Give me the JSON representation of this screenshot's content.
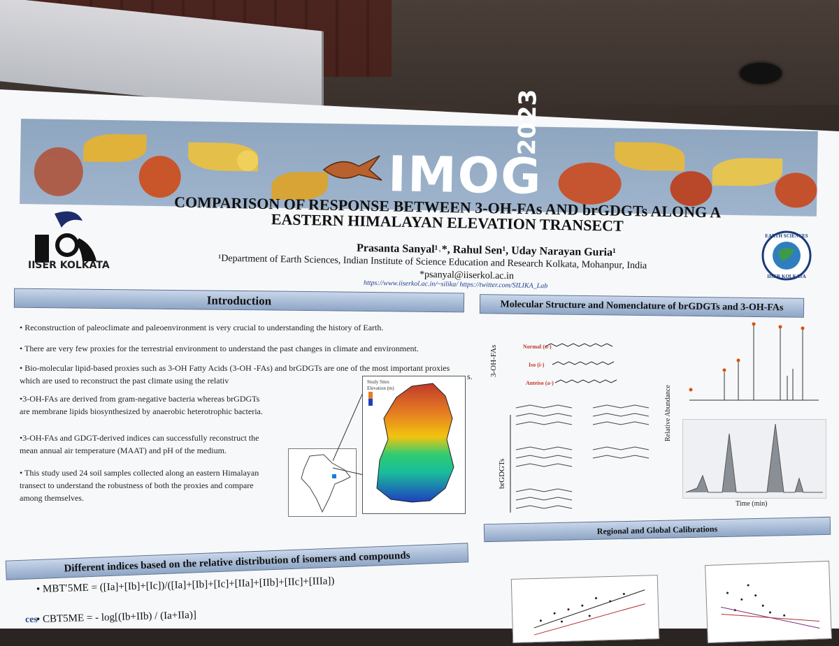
{
  "banner": {
    "event": "IMOG",
    "year": "2023"
  },
  "header": {
    "title_line1": "COMPARISON OF RESPONSE BETWEEN 3-OH-FAs AND brGDGTs ALONG A",
    "title_line2": "EASTERN HIMALAYAN ELEVATION TRANSECT",
    "authors": "Prasanta Sanyal¹˒*, Rahul Sen¹, Uday Narayan Guria¹",
    "affiliation": "¹Department of Earth Sciences, Indian Institute of Science Education and Research Kolkata, Mohanpur, India",
    "email": "*psanyal@iiserkol.ac.in",
    "links": "https://www.iiserkol.ac.in/~silika/  https://twitter.com/SILIKA_Lab",
    "logo_left": "IISER KOLKATA",
    "logo_right_top": "EARTH SCIENCES",
    "logo_right_bottom": "IISER KOLKATA"
  },
  "introduction": {
    "heading": "Introduction",
    "bullets": [
      "• Reconstruction of paleoclimate and paleoenvironment is very crucial to understanding the history of Earth.",
      "• There are very few proxies for the terrestrial environment to understand the past changes in climate and environment.",
      "• Bio-molecular lipid-based proxies such as 3-OH Fatty Acids (3-OH -FAs) and brGDGTs are one of the most important proxies which are used to reconstruct the past climate using the relativ",
      "•3-OH-FAs are derived from gram-negative bacteria whereas brGDGTs are membrane lipids biosynthesized by anaerobic heterotrophic bacteria.",
      "•3-OH-FAs and GDGT-derived indices can successfully reconstruct the mean annual air temperature (MAAT) and pH of the medium.",
      "• This study used 24 soil samples collected along an eastern Himalayan transect to understand the robustness of both the proxies and compare among themselves."
    ],
    "trailing_s": "s.",
    "map_legend_title": "Study Sites",
    "map_legend_elev": "Elevation (m)"
  },
  "molecular": {
    "heading": "Molecular Structure and Nomenclature of brGDGTs and 3-OH-FAs",
    "ohfa_label": "3-OH-FAs",
    "brgdgt_label": "brGDGTs",
    "normal": "Normal (n-)",
    "iso": "Iso (i-)",
    "anteiso": "Anteiso (a-)",
    "y_axis": "Relative Abundance",
    "x_axis": "Time (min)"
  },
  "calibrations": {
    "heading": "Regional and Global  Calibrations"
  },
  "indices": {
    "heading": "Different indices based on the relative distribution of isomers and compounds",
    "formula1": "•  MBT′5ME = ([Ia]+[Ib]+[Ic])/([Ia]+[Ib]+[Ic]+[IIa]+[IIb]+[IIc]+[IIIa])",
    "formula2": "•  CBT5ME = - log[(Ib+IIb) / (Ia+IIa)]",
    "side_text": "ces"
  },
  "colors": {
    "banner": "#9fb4cc",
    "section_header": "#8ea6c6",
    "poster": "#f7f8fa"
  }
}
